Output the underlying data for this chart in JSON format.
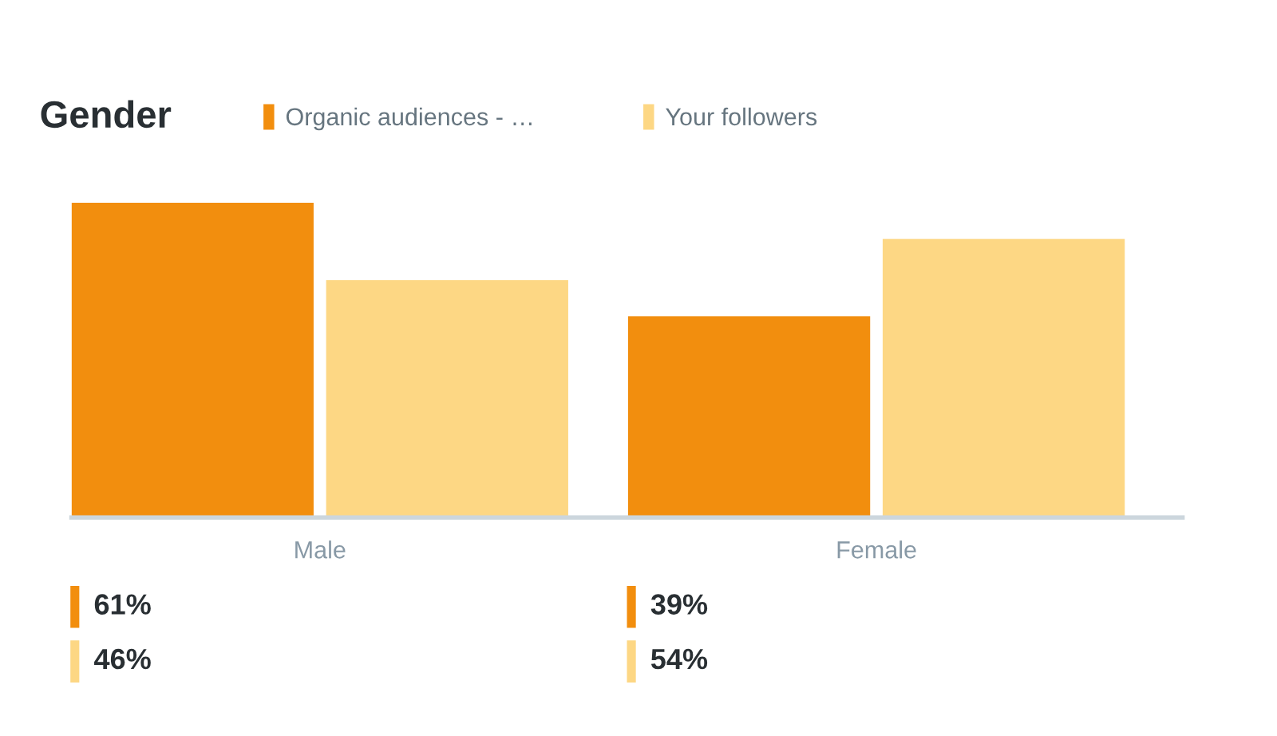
{
  "chart_data": {
    "type": "bar",
    "title": "Gender",
    "categories": [
      "Male",
      "Female"
    ],
    "series": [
      {
        "name": "Organic audiences - …",
        "color": "#f28e0e",
        "values": [
          61,
          39
        ],
        "value_labels": [
          "61%",
          "39%"
        ]
      },
      {
        "name": "Your followers",
        "color": "#fdd784",
        "values": [
          46,
          54
        ],
        "value_labels": [
          "46%",
          "54%"
        ]
      }
    ],
    "legend": "top left"
  }
}
